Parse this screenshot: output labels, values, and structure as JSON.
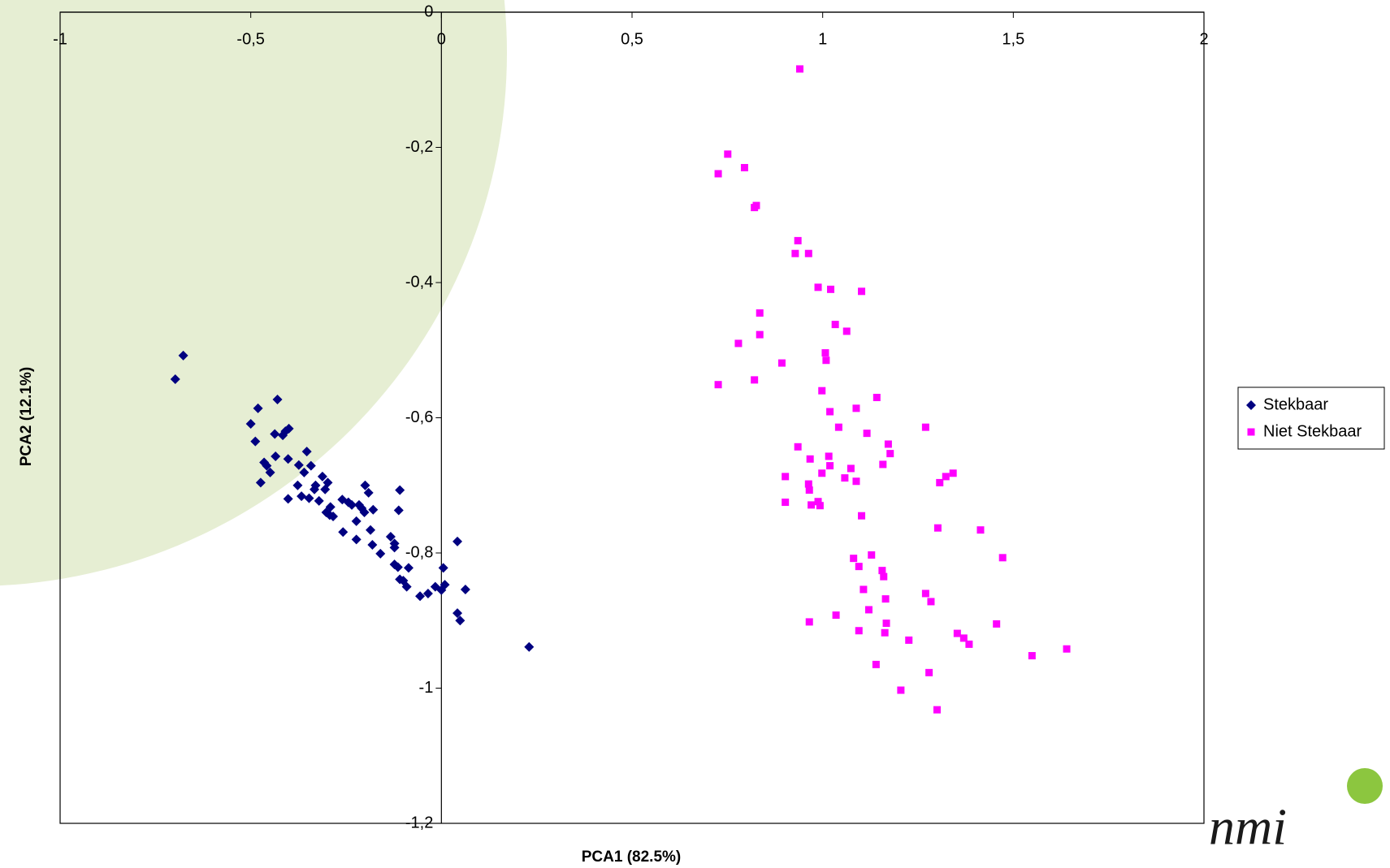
{
  "chart_data": {
    "type": "scatter",
    "xlabel": "PCA1 (82.5%)",
    "ylabel": "PCA2 (12.1%)",
    "xlim": [
      -1,
      2
    ],
    "ylim": [
      -1.2,
      0
    ],
    "xticks": [
      -1,
      {
        "value": -0.5,
        "label": "-0,5"
      },
      0,
      {
        "value": 0.5,
        "label": "0,5"
      },
      1,
      {
        "value": 1.5,
        "label": "1,5"
      },
      2
    ],
    "yticks": [
      0,
      {
        "value": -0.2,
        "label": "-0,2"
      },
      {
        "value": -0.4,
        "label": "-0,4"
      },
      {
        "value": -0.6,
        "label": "-0,6"
      },
      {
        "value": -0.8,
        "label": "-0,8"
      },
      -1,
      {
        "value": -1.2,
        "label": "-1,2"
      }
    ],
    "legend_position": "right",
    "series": [
      {
        "name": "Stekbaar",
        "color": "#000080",
        "marker": "diamond",
        "x": [
          -0.677,
          -0.698,
          -0.43,
          -0.481,
          -0.5,
          -0.488,
          -0.4,
          -0.416,
          -0.437,
          -0.409,
          -0.465,
          -0.458,
          -0.474,
          -0.449,
          -0.435,
          -0.402,
          -0.353,
          -0.374,
          -0.342,
          -0.36,
          -0.33,
          -0.377,
          -0.402,
          -0.347,
          -0.367,
          -0.312,
          -0.298,
          -0.333,
          -0.305,
          -0.321,
          -0.291,
          -0.302,
          -0.284,
          -0.293,
          -0.26,
          -0.244,
          -0.235,
          -0.216,
          -0.209,
          -0.2,
          -0.191,
          -0.202,
          -0.179,
          -0.223,
          -0.258,
          -0.223,
          -0.186,
          -0.181,
          -0.16,
          -0.133,
          -0.123,
          -0.109,
          -0.112,
          -0.123,
          -0.114,
          -0.086,
          -0.109,
          -0.091,
          -0.056,
          -0.035,
          -0.016,
          0.0,
          0.009,
          0.005,
          0.042,
          0.063,
          0.042,
          0.049,
          0.23,
          -0.123,
          -0.1
        ],
        "values": [
          -0.508,
          -0.543,
          -0.573,
          -0.586,
          -0.609,
          -0.635,
          -0.616,
          -0.626,
          -0.624,
          -0.62,
          -0.666,
          -0.671,
          -0.696,
          -0.681,
          -0.657,
          -0.661,
          -0.65,
          -0.67,
          -0.671,
          -0.681,
          -0.7,
          -0.7,
          -0.72,
          -0.719,
          -0.716,
          -0.687,
          -0.696,
          -0.706,
          -0.706,
          -0.723,
          -0.732,
          -0.74,
          -0.746,
          -0.744,
          -0.721,
          -0.725,
          -0.729,
          -0.729,
          -0.734,
          -0.7,
          -0.711,
          -0.74,
          -0.736,
          -0.753,
          -0.769,
          -0.78,
          -0.766,
          -0.788,
          -0.801,
          -0.776,
          -0.786,
          -0.707,
          -0.737,
          -0.817,
          -0.821,
          -0.822,
          -0.839,
          -0.85,
          -0.864,
          -0.86,
          -0.85,
          -0.855,
          -0.847,
          -0.822,
          -0.783,
          -0.854,
          -0.889,
          -0.9,
          -0.939,
          -0.792,
          -0.841
        ]
      },
      {
        "name": "Niet Stekbaar",
        "color": "#ff00ff",
        "marker": "square",
        "x": [
          0.94,
          0.751,
          0.795,
          0.726,
          0.826,
          0.821,
          0.935,
          0.928,
          0.963,
          0.988,
          1.021,
          1.102,
          0.835,
          1.033,
          1.063,
          0.835,
          0.779,
          1.007,
          1.009,
          0.893,
          0.821,
          0.726,
          0.998,
          1.142,
          1.088,
          1.019,
          1.042,
          1.116,
          1.27,
          1.172,
          1.177,
          0.935,
          0.967,
          1.016,
          1.019,
          1.074,
          0.998,
          1.158,
          0.902,
          0.963,
          0.965,
          1.058,
          1.088,
          1.342,
          1.323,
          1.307,
          0.97,
          0.902,
          0.993,
          0.988,
          1.102,
          1.302,
          1.414,
          1.081,
          1.095,
          1.128,
          1.156,
          1.16,
          1.472,
          1.107,
          1.165,
          1.27,
          1.284,
          1.121,
          1.167,
          0.965,
          1.035,
          1.095,
          1.163,
          1.456,
          1.226,
          1.353,
          1.37,
          1.384,
          1.549,
          1.64,
          1.14,
          1.279,
          1.205,
          1.3
        ],
        "values": [
          -0.084,
          -0.21,
          -0.23,
          -0.239,
          -0.286,
          -0.289,
          -0.338,
          -0.357,
          -0.357,
          -0.407,
          -0.41,
          -0.413,
          -0.445,
          -0.462,
          -0.472,
          -0.477,
          -0.49,
          -0.504,
          -0.515,
          -0.519,
          -0.544,
          -0.551,
          -0.56,
          -0.57,
          -0.586,
          -0.591,
          -0.614,
          -0.623,
          -0.614,
          -0.639,
          -0.653,
          -0.643,
          -0.661,
          -0.657,
          -0.671,
          -0.675,
          -0.682,
          -0.669,
          -0.687,
          -0.698,
          -0.707,
          -0.689,
          -0.694,
          -0.682,
          -0.687,
          -0.696,
          -0.729,
          -0.725,
          -0.73,
          -0.724,
          -0.745,
          -0.763,
          -0.766,
          -0.808,
          -0.82,
          -0.803,
          -0.826,
          -0.835,
          -0.807,
          -0.854,
          -0.868,
          -0.86,
          -0.872,
          -0.884,
          -0.904,
          -0.902,
          -0.892,
          -0.915,
          -0.918,
          -0.905,
          -0.929,
          -0.919,
          -0.926,
          -0.935,
          -0.952,
          -0.942,
          -0.965,
          -0.977,
          -1.003,
          -1.032
        ]
      }
    ]
  },
  "logo": "nmi"
}
